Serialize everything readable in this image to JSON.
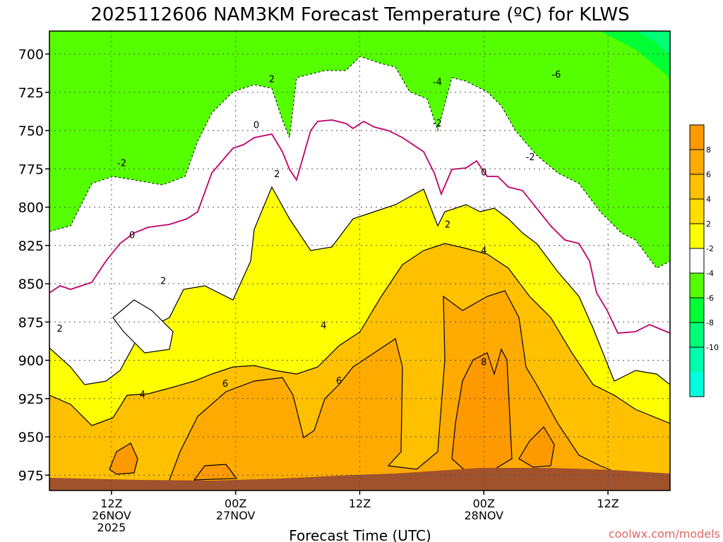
{
  "chart_data": {
    "type": "heatmap",
    "title": "2025112606 NAM3KM Forecast Temperature (ºC) for KLWS",
    "xlabel": "Forecast Time (UTC)",
    "ylabel": "",
    "watermark": "coolwx.com/models",
    "y_axis": {
      "unit": "hPa",
      "range": [
        985,
        685
      ],
      "ticks": [
        "700",
        "725",
        "750",
        "775",
        "800",
        "825",
        "850",
        "875",
        "900",
        "925",
        "950",
        "975"
      ],
      "tick_values": [
        700,
        725,
        750,
        775,
        800,
        825,
        850,
        875,
        900,
        925,
        950,
        975
      ]
    },
    "x_axis": {
      "unit": "hours since 2025-11-26 06Z",
      "range": [
        0,
        60
      ],
      "ticks": [
        {
          "hour": 6,
          "lines": [
            "12Z",
            "26NOV",
            "2025"
          ]
        },
        {
          "hour": 18,
          "lines": [
            "00Z",
            "27NOV"
          ]
        },
        {
          "hour": 30,
          "lines": [
            "12Z"
          ]
        },
        {
          "hour": 42,
          "lines": [
            "00Z",
            "28NOV"
          ]
        },
        {
          "hour": 54,
          "lines": [
            "12Z"
          ]
        }
      ]
    },
    "colorbar": {
      "labels": [
        "8",
        "6",
        "4",
        "2",
        "-2",
        "-4",
        "-6",
        "-8",
        "-10"
      ],
      "bands": [
        {
          "range": "8 to 10",
          "color": "#ff9900"
        },
        {
          "range": "6 to 8",
          "color": "#ffaa00"
        },
        {
          "range": "4 to 6",
          "color": "#ffc000"
        },
        {
          "range": "2 to 4",
          "color": "#ffdd00"
        },
        {
          "range": "0 to 2",
          "color": "#ffff00"
        },
        {
          "range": "-2 to 2 (near 0)",
          "color": "#ffffff"
        },
        {
          "range": "-4 to -2",
          "color": "#55ff00"
        },
        {
          "range": "-6 to -4",
          "color": "#00ff33"
        },
        {
          "range": "-8 to -6",
          "color": "#00ff77"
        },
        {
          "range": "-10 to -8",
          "color": "#00ffaa"
        },
        {
          "range": "below -10",
          "color": "#00ffdd"
        }
      ]
    },
    "contour_labels": [
      {
        "text": "-4",
        "hour": 37.5,
        "p": 718
      },
      {
        "text": "-6",
        "hour": 49.0,
        "p": 713
      },
      {
        "text": "2",
        "hour": 21.5,
        "p": 716
      },
      {
        "text": "-2",
        "hour": 7.0,
        "p": 771
      },
      {
        "text": "0",
        "hour": 20.0,
        "p": 746
      },
      {
        "text": "-2",
        "hour": 37.5,
        "p": 745
      },
      {
        "text": "-2",
        "hour": 46.5,
        "p": 767
      },
      {
        "text": "0",
        "hour": 42.0,
        "p": 777
      },
      {
        "text": "2",
        "hour": 22.0,
        "p": 778
      },
      {
        "text": "2",
        "hour": 38.5,
        "p": 811
      },
      {
        "text": "0",
        "hour": 8.0,
        "p": 818
      },
      {
        "text": "4",
        "hour": 42.0,
        "p": 828
      },
      {
        "text": "2",
        "hour": 11.0,
        "p": 848
      },
      {
        "text": "2",
        "hour": 1.0,
        "p": 879
      },
      {
        "text": "4",
        "hour": 26.5,
        "p": 877
      },
      {
        "text": "6",
        "hour": 17.0,
        "p": 915
      },
      {
        "text": "6",
        "hour": 28.0,
        "p": 913
      },
      {
        "text": "4",
        "hour": 9.0,
        "p": 922
      },
      {
        "text": "8",
        "hour": 42.0,
        "p": 901
      }
    ],
    "isotherm_profiles": {
      "comment": "approximate pressure level (hPa) of selected isotherms at each forecast hour",
      "hours": [
        0,
        3,
        6,
        9,
        12,
        15,
        18,
        21,
        24,
        27,
        30,
        33,
        36,
        39,
        42,
        45,
        48,
        51,
        54,
        57,
        60
      ],
      "minus2C": [
        806,
        803,
        778,
        773,
        774,
        770,
        742,
        724,
        742,
        740,
        705,
        713,
        728,
        742,
        740,
        755,
        768,
        772,
        782,
        810,
        797
      ],
      "zeroC": [
        845,
        843,
        836,
        803,
        800,
        793,
        757,
        748,
        771,
        743,
        747,
        744,
        769,
        778,
        765,
        780,
        800,
        817,
        854,
        872,
        876
      ],
      "plus2C": [
        888,
        908,
        902,
        849,
        850,
        845,
        839,
        785,
        811,
        816,
        806,
        810,
        791,
        805,
        806,
        836,
        842,
        868,
        888,
        900,
        913
      ],
      "plus4C": [
        923,
        935,
        942,
        932,
        927,
        912,
        868,
        868,
        868,
        888,
        860,
        840,
        818,
        818,
        823,
        826,
        848,
        856,
        874,
        924,
        937
      ]
    }
  }
}
